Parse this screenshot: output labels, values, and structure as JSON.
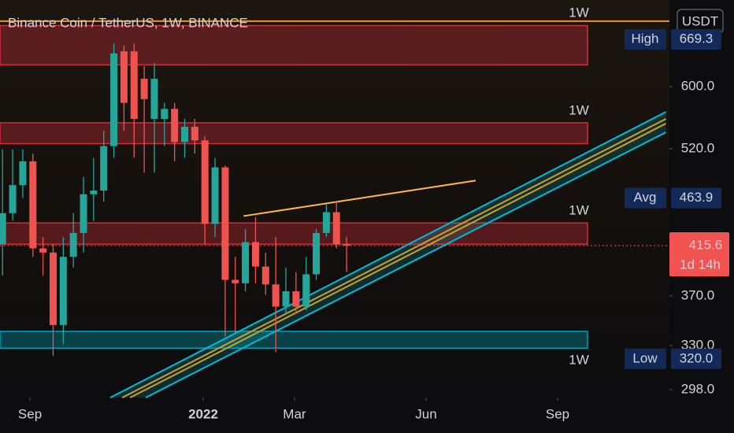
{
  "chart_data": {
    "type": "candlestick",
    "title": "Binance Coin / TetherUS, 1W, BINANCE",
    "currency": "USDT",
    "x": [
      0.25,
      1.25,
      2.25,
      3.25,
      4.25,
      5.25,
      6.25,
      7.25,
      8.25,
      9.25,
      10.25,
      11.25,
      12.25,
      13.25,
      14.25,
      15.25,
      16.25,
      17.25,
      18.25,
      19.25,
      20.25,
      21.25,
      22.25,
      23.25,
      24.25,
      25.25,
      26.25,
      27.25,
      28.25,
      29.25,
      30.25,
      31.25,
      32.25,
      33.25,
      34.25
    ],
    "open": [
      417,
      448,
      478,
      505,
      413,
      409,
      346,
      405,
      428,
      468,
      472,
      523,
      651,
      651,
      611,
      557,
      557,
      570,
      528,
      547,
      530,
      437,
      498,
      384,
      381,
      419,
      396,
      380,
      361,
      374,
      361,
      389,
      428,
      449,
      417
    ],
    "high": [
      519,
      519,
      519,
      514,
      424,
      417,
      424,
      448,
      487,
      509,
      542,
      663,
      660,
      663,
      629,
      634,
      578,
      578,
      557,
      557,
      535,
      509,
      500,
      405,
      432,
      444,
      409,
      424,
      395,
      391,
      405,
      432,
      457,
      460,
      424
    ],
    "low": [
      388,
      440,
      464,
      405,
      388,
      322,
      331,
      395,
      409,
      440,
      460,
      509,
      542,
      509,
      492,
      492,
      523,
      505,
      509,
      514,
      417,
      424,
      337,
      340,
      374,
      381,
      371,
      325,
      355,
      355,
      358,
      384,
      424,
      413,
      391
    ],
    "close": [
      448,
      478,
      505,
      413,
      409,
      346,
      405,
      428,
      468,
      472,
      523,
      648,
      578,
      557,
      583,
      611,
      570,
      528,
      547,
      530,
      437,
      498,
      384,
      381,
      419,
      396,
      380,
      361,
      374,
      361,
      389,
      428,
      449,
      417,
      415.6
    ],
    "up_color": "#26a69a",
    "down_color": "#ef5350",
    "xlim": [
      0,
      66.15
    ],
    "xticks": [
      {
        "value": 2.96,
        "label": "Sep"
      },
      {
        "value": 20.08,
        "label": "2022"
      },
      {
        "value": 29.1,
        "label": "Mar"
      },
      {
        "value": 42.1,
        "label": "Jun"
      },
      {
        "value": 55.1,
        "label": "Sep"
      }
    ],
    "ylim": [
      292.6,
      733
    ],
    "log_scale": true,
    "yticks": [
      {
        "value": 600,
        "label": "600.0"
      },
      {
        "value": 520,
        "label": "520.0"
      },
      {
        "value": 370,
        "label": "370.0"
      },
      {
        "value": 330,
        "label": "330.0"
      },
      {
        "value": 298,
        "label": "298.0"
      }
    ],
    "levels": [
      {
        "label": "1W",
        "price": 698,
        "color": "#f7931a"
      }
    ],
    "zones": [
      {
        "top": 691,
        "bottom": 631,
        "color": "#f23645"
      },
      {
        "label": "1W",
        "top": 552,
        "bottom": 526,
        "color": "#f23645"
      },
      {
        "label": "1W",
        "top": 438,
        "bottom": 417,
        "color": "#f23645"
      },
      {
        "label": "1W",
        "top": 341,
        "bottom": 328,
        "color": "#00bcd4"
      }
    ],
    "trend_lines": [
      {
        "x": [
          24.06,
          47.0
        ],
        "y": [
          445,
          483
        ],
        "color": "#ffb74d"
      },
      {
        "x": [
          10.9,
          65.8
        ],
        "y": [
          292.6,
          566
        ],
        "color": "#00bcd4"
      },
      {
        "x": [
          12.08,
          65.8
        ],
        "y": [
          292.6,
          557
        ],
        "color": "#ff9800"
      },
      {
        "x": [
          12.86,
          65.8
        ],
        "y": [
          292.6,
          551
        ],
        "color": "#ff9800"
      },
      {
        "x": [
          14.4,
          65.8
        ],
        "y": [
          292.6,
          540
        ],
        "color": "#00bcd4"
      }
    ],
    "badges": [
      {
        "label": "High",
        "value": 669.3,
        "value_label": "669.3"
      },
      {
        "label": "Avg",
        "value": 463.9,
        "value_label": "463.9"
      },
      {
        "label": "Low",
        "value": 320.0,
        "value_label": "320.0"
      }
    ],
    "last_price": 415.6,
    "last_price_label": "415.6",
    "countdown": "1d 14h"
  }
}
